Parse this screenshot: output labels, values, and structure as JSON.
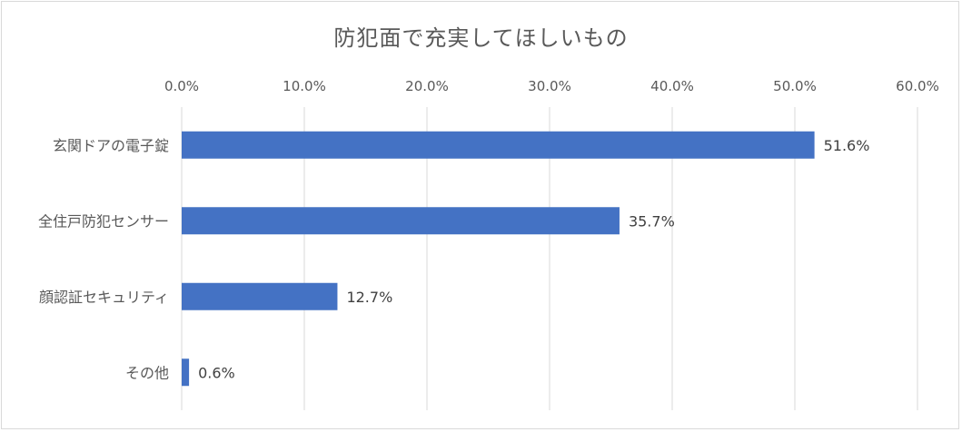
{
  "chart_data": {
    "type": "bar",
    "orientation": "horizontal",
    "title": "防犯面で充実してほしいもの",
    "categories": [
      "玄関ドアの電子錠",
      "全住戸防犯センサー",
      "顔認証セキュリティ",
      "その他"
    ],
    "values": [
      51.6,
      35.7,
      12.7,
      0.6
    ],
    "data_labels": [
      "51.6%",
      "35.7%",
      "12.7%",
      "0.6%"
    ],
    "x_ticks": [
      "0.0%",
      "10.0%",
      "20.0%",
      "30.0%",
      "40.0%",
      "50.0%",
      "60.0%"
    ],
    "xlim": [
      0,
      60
    ],
    "x_axis_position": "top",
    "grid": true,
    "bar_color": "#4472C4",
    "grid_color": "#d9d9d9"
  }
}
